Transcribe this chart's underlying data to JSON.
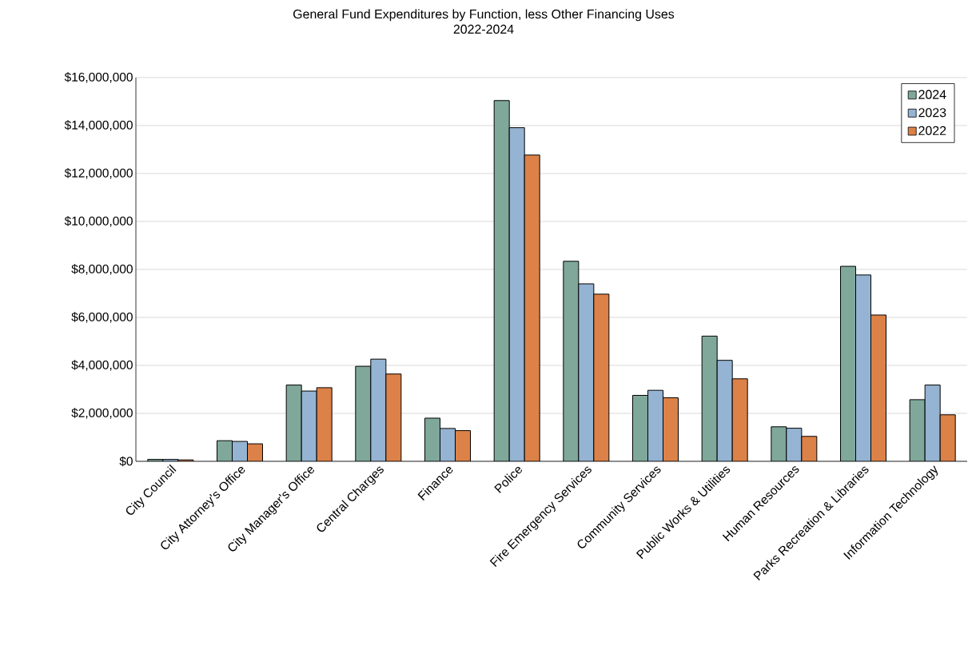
{
  "chart_data": {
    "type": "bar",
    "title": "General Fund Expenditures by Function, less Other Financing Uses",
    "subtitle": "2022-2024",
    "categories": [
      "City Council",
      "City Attorney's Office",
      "City Manager's Office",
      "Central Charges",
      "Finance",
      "Police",
      "Fire Emergency Services",
      "Community Services",
      "Public Works & Utilities",
      "Human Resources",
      "Parks Recreation & Libraries",
      "Information Technology"
    ],
    "series": [
      {
        "name": "2024",
        "color": "#7fa89a",
        "values": [
          80000,
          860000,
          3180000,
          3960000,
          1800000,
          15040000,
          8340000,
          2750000,
          5220000,
          1440000,
          8130000,
          2570000
        ]
      },
      {
        "name": "2023",
        "color": "#95b3d2",
        "values": [
          80000,
          830000,
          2930000,
          4260000,
          1370000,
          13910000,
          7400000,
          2960000,
          4210000,
          1380000,
          7770000,
          3180000
        ]
      },
      {
        "name": "2022",
        "color": "#dc8147",
        "values": [
          60000,
          730000,
          3070000,
          3640000,
          1280000,
          12770000,
          6970000,
          2650000,
          3440000,
          1040000,
          6100000,
          1940000
        ]
      }
    ],
    "ylim": [
      0,
      16000000
    ],
    "yticks": [
      {
        "value": 0,
        "label": "$0"
      },
      {
        "value": 2000000,
        "label": "$2,000,000"
      },
      {
        "value": 4000000,
        "label": "$4,000,000"
      },
      {
        "value": 6000000,
        "label": "$6,000,000"
      },
      {
        "value": 8000000,
        "label": "$8,000,000"
      },
      {
        "value": 10000000,
        "label": "$10,000,000"
      },
      {
        "value": 12000000,
        "label": "$12,000,000"
      },
      {
        "value": 14000000,
        "label": "$14,000,000"
      },
      {
        "value": 16000000,
        "label": "$16,000,000"
      }
    ],
    "grid": "y",
    "legend": "top right"
  }
}
